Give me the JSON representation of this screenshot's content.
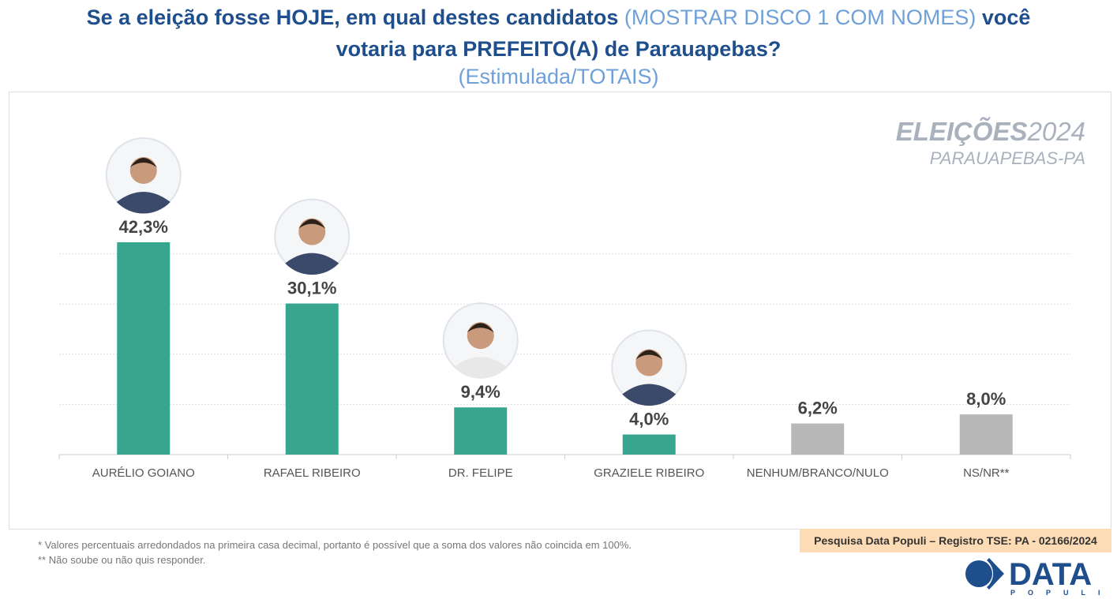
{
  "header": {
    "title_part1": "Se a eleição fosse HOJE, em qual destes candidatos ",
    "title_part2": "(MOSTRAR DISCO 1 COM NOMES)",
    "title_part3": " você",
    "title_line2": "votaria para PREFEITO(A) de Parauapebas?",
    "subtitle": "(Estimulada/TOTAIS)"
  },
  "brand": {
    "bold": "ELEIÇÕES",
    "year": "2024",
    "place": "PARAUAPEBAS-PA"
  },
  "chart_data": {
    "type": "bar",
    "categories": [
      "AURÉLIO GOIANO",
      "RAFAEL RIBEIRO",
      "DR. FELIPE",
      "GRAZIELE RIBEIRO",
      "NENHUM/BRANCO/NULO",
      "NS/NR**"
    ],
    "values": [
      42.3,
      30.1,
      9.4,
      4.0,
      6.2,
      8.0
    ],
    "labels": [
      "42,3%",
      "30,1%",
      "9,4%",
      "4,0%",
      "6,2%",
      "8,0%"
    ],
    "has_photo": [
      true,
      true,
      true,
      true,
      false,
      false
    ],
    "colors": [
      "#38a58f",
      "#38a58f",
      "#38a58f",
      "#38a58f",
      "#b8b8b8",
      "#b8b8b8"
    ],
    "ylim": [
      0,
      42.3
    ],
    "gridlines": [
      10,
      20,
      30,
      40
    ],
    "grid": true
  },
  "notes": [
    "*  Valores percentuais arredondados na primeira casa decimal, portanto é possível que a soma dos valores não coincida em 100%.",
    "** Não soube ou não quis responder."
  ],
  "source": "Pesquisa Data Populi – Registro TSE: PA - 02166/2024",
  "logo": {
    "name": "DATA",
    "sub": "POPULI",
    "color": "#1f4e8c"
  }
}
